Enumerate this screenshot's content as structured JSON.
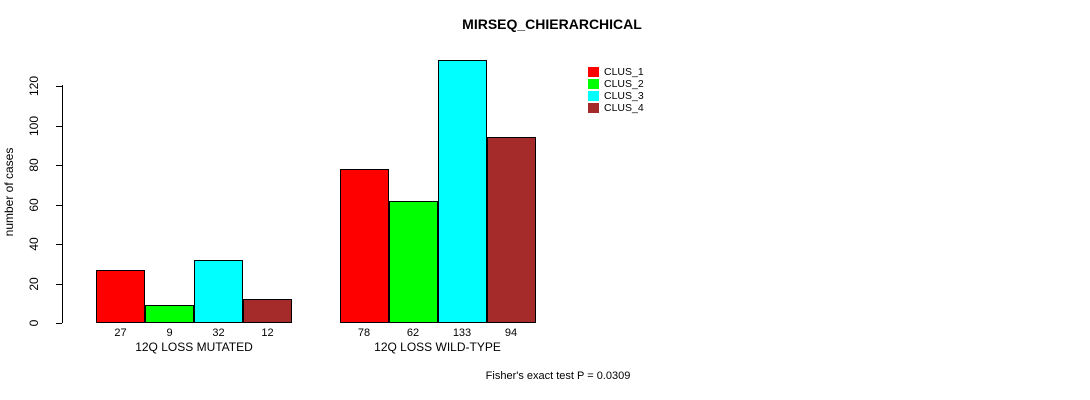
{
  "page": {
    "background": "#ffffff"
  },
  "chart_data": {
    "type": "bar",
    "title": "MIRSEQ_CHIERARCHICAL",
    "xlabel": "",
    "ylabel": "number of cases",
    "categories": [
      "12Q LOSS MUTATED",
      "12Q LOSS WILD-TYPE"
    ],
    "series": [
      {
        "name": "CLUS_1",
        "color": "#ff0000",
        "values": [
          27,
          78
        ]
      },
      {
        "name": "CLUS_2",
        "color": "#00ff00",
        "values": [
          9,
          62
        ]
      },
      {
        "name": "CLUS_3",
        "color": "#00ffff",
        "values": [
          32,
          133
        ]
      },
      {
        "name": "CLUS_4",
        "color": "#a52a2a",
        "values": [
          12,
          94
        ]
      }
    ],
    "yticks": [
      0,
      20,
      40,
      60,
      80,
      100,
      120
    ],
    "ylim": [
      0,
      133
    ],
    "grid": false,
    "bar_borders": "#000000",
    "value_labels_shown": true,
    "legend_position": "top-right",
    "annotation": "Fisher's exact test P = 0.0309"
  }
}
